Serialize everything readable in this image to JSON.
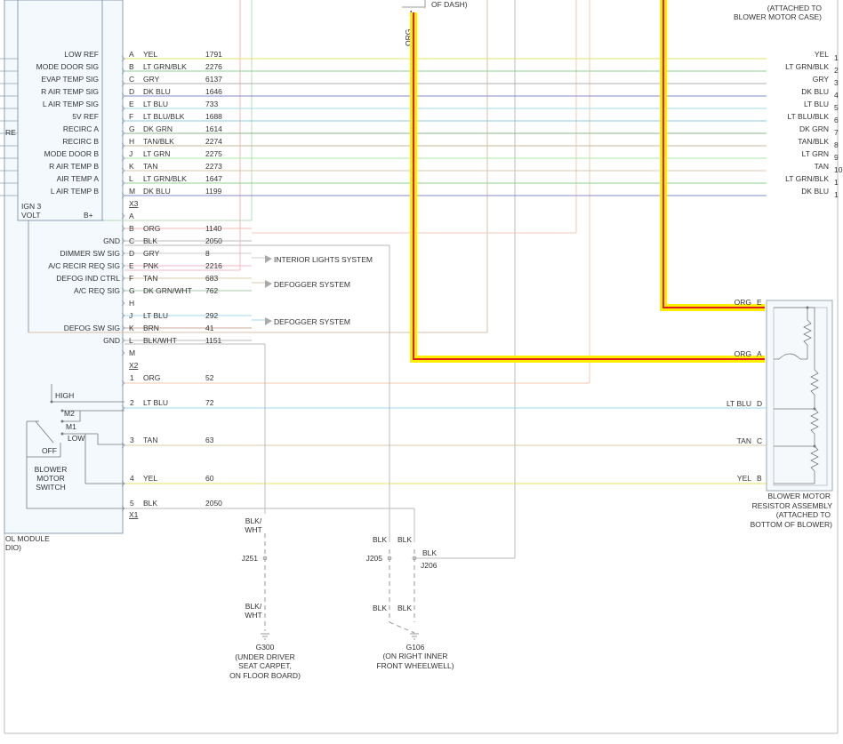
{
  "top_labels": {
    "of_dash": "OF DASH)",
    "attached_line1": "(ATTACHED TO",
    "attached_line2": "BLOWER MOTOR CASE)",
    "cut_left": "RE",
    "org_vertical": "ORG",
    "pin_1": "1"
  },
  "module": {
    "name_line1": "OL MODULE",
    "name_line2": "DIO)",
    "ign3": "IGN 3",
    "volt": "VOLT",
    "bplus": "B+",
    "connector_x3": "X3",
    "connector_x2": "X2",
    "connector_x1": "X1"
  },
  "x3_pins": [
    {
      "sig": "LOW REF",
      "pin": "A",
      "color": "YEL",
      "circuit": "1791",
      "right": "YEL",
      "wire_color": "#e6e066"
    },
    {
      "sig": "MODE DOOR SIG",
      "pin": "B",
      "color": "LT GRN/BLK",
      "circuit": "2276",
      "right": "LT GRN/BLK",
      "wire_color": "#8fd38f"
    },
    {
      "sig": "EVAP TEMP SIG",
      "pin": "C",
      "color": "GRY",
      "circuit": "6137",
      "right": "GRY",
      "wire_color": "#b0b0b0"
    },
    {
      "sig": "R AIR TEMP SIG",
      "pin": "D",
      "color": "DK BLU",
      "circuit": "1646",
      "right": "DK BLU",
      "wire_color": "#8888c8"
    },
    {
      "sig": "L AIR TEMP SIG",
      "pin": "E",
      "color": "LT BLU",
      "circuit": "733",
      "right": "LT BLU",
      "wire_color": "#a0d8ee"
    },
    {
      "sig": "5V REF",
      "pin": "F",
      "color": "LT BLU/BLK",
      "circuit": "1688",
      "right": "LT BLU/BLK",
      "wire_color": "#90c8e0"
    },
    {
      "sig": "RECIRC A",
      "pin": "G",
      "color": "DK GRN",
      "circuit": "1614",
      "right": "DK GRN",
      "wire_color": "#88b888"
    },
    {
      "sig": "RECIRC B",
      "pin": "H",
      "color": "TAN/BLK",
      "circuit": "2274",
      "right": "TAN/BLK",
      "wire_color": "#c8b898"
    },
    {
      "sig": "MODE DOOR B",
      "pin": "J",
      "color": "LT GRN",
      "circuit": "2275",
      "right": "LT GRN",
      "wire_color": "#a8e8a8"
    },
    {
      "sig": "R AIR TEMP B",
      "pin": "K",
      "color": "TAN",
      "circuit": "2273",
      "right": "TAN",
      "wire_color": "#d8c8a8"
    },
    {
      "sig": "AIR TEMP A",
      "pin": "L",
      "color": "LT GRN/BLK",
      "circuit": "1647",
      "right": "LT GRN/BLK",
      "wire_color": "#8fd38f"
    },
    {
      "sig": "L AIR TEMP B",
      "pin": "M",
      "color": "DK BLU",
      "circuit": "1199",
      "right": "DK BLU",
      "wire_color": "#8888c8"
    }
  ],
  "right_cut_numbers": [
    "1",
    "2",
    "3",
    "4",
    "5",
    "6",
    "7",
    "8",
    "9",
    "10",
    "1",
    "1"
  ],
  "x2_pins": [
    {
      "sig": "",
      "pin": "A",
      "color": "",
      "circuit": ""
    },
    {
      "sig": "",
      "pin": "B",
      "color": "ORG",
      "circuit": "1140"
    },
    {
      "sig": "GND",
      "pin": "C",
      "color": "BLK",
      "circuit": "2050"
    },
    {
      "sig": "DIMMER SW SIG",
      "pin": "D",
      "color": "GRY",
      "circuit": "8"
    },
    {
      "sig": "A/C RECIR REQ SIG",
      "pin": "E",
      "color": "PNK",
      "circuit": "2216"
    },
    {
      "sig": "DEFOG IND CTRL",
      "pin": "F",
      "color": "TAN",
      "circuit": "683"
    },
    {
      "sig": "A/C REQ SIG",
      "pin": "G",
      "color": "DK GRN/WHT",
      "circuit": "762"
    },
    {
      "sig": "",
      "pin": "H",
      "color": "",
      "circuit": ""
    },
    {
      "sig": "",
      "pin": "J",
      "color": "LT BLU",
      "circuit": "292"
    },
    {
      "sig": "DEFOG SW SIG",
      "pin": "K",
      "color": "BRN",
      "circuit": "41"
    },
    {
      "sig": "GND",
      "pin": "L",
      "color": "BLK/WHT",
      "circuit": "1151"
    },
    {
      "sig": "",
      "pin": "M",
      "color": "",
      "circuit": ""
    }
  ],
  "systems": {
    "interior_lights": "INTERIOR LIGHTS SYSTEM",
    "defogger_1": "DEFOGGER SYSTEM",
    "defogger_2": "DEFOGGER SYSTEM"
  },
  "x1_pins": [
    {
      "pin": "1",
      "color": "ORG",
      "circuit": "52"
    },
    {
      "pin": "2",
      "color": "LT BLU",
      "circuit": "72"
    },
    {
      "pin": "3",
      "color": "TAN",
      "circuit": "63"
    },
    {
      "pin": "4",
      "color": "YEL",
      "circuit": "60"
    },
    {
      "pin": "5",
      "color": "BLK",
      "circuit": "2050"
    }
  ],
  "switch": {
    "high": "HIGH",
    "m2": "M2",
    "m1": "M1",
    "low": "LOW",
    "off": "OFF",
    "name_line1": "BLOWER",
    "name_line2": "MOTOR",
    "name_line3": "SWITCH"
  },
  "resistor": {
    "pin_e_color": "ORG",
    "pin_e": "E",
    "pin_a_color": "ORG",
    "pin_a": "A",
    "pin_d_color": "LT BLU",
    "pin_d": "D",
    "pin_c_color": "TAN",
    "pin_c": "C",
    "pin_b_color": "YEL",
    "pin_b": "B",
    "name_line1": "BLOWER MOTOR",
    "name_line2": "RESISTOR ASSEMBLY",
    "name_line3": "(ATTACHED TO",
    "name_line4": "BOTTOM OF BLOWER)"
  },
  "grounds": {
    "blk_wht_1": "BLK/",
    "blk_wht_2": "WHT",
    "j251": "J251",
    "blk_wht_3": "BLK/",
    "blk_wht_4": "WHT",
    "g300": "G300",
    "g300_line1": "(UNDER DRIVER",
    "g300_line2": "SEAT CARPET,",
    "g300_line3": "ON FLOOR BOARD)",
    "blk_a": "BLK",
    "blk_b": "BLK",
    "blk_c": "BLK",
    "j205": "J205",
    "j206": "J206",
    "blk_d": "BLK",
    "blk_e": "BLK",
    "g106": "G106",
    "g106_line1": "(ON RIGHT INNER",
    "g106_line2": "FRONT WHEELWELL)"
  },
  "colors": {
    "highlight": "#ffee00",
    "highlight_core": "#e02020",
    "module_fill": "#f4f9fd",
    "border": "#8aa0b4"
  }
}
